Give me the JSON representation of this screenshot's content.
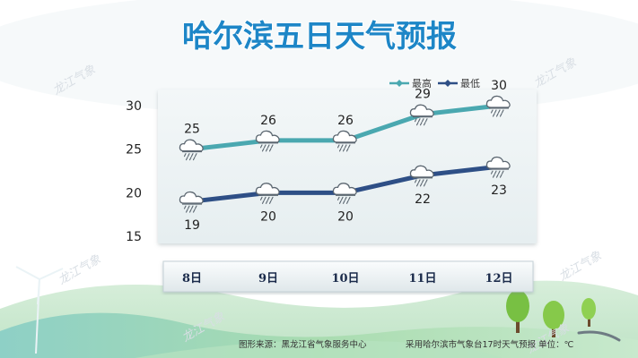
{
  "title": "哈尔滨五日天气预报",
  "watermark": "龙江气象",
  "footer": {
    "source": "图形来源：黑龙江省气象服务中心",
    "note": "采用哈尔滨市气象台17时天气预报 单位：℃"
  },
  "chart_data": {
    "type": "line",
    "categories": [
      "8日",
      "9日",
      "10日",
      "11日",
      "12日"
    ],
    "series": [
      {
        "name": "最高",
        "values": [
          25,
          26,
          26,
          29,
          30
        ],
        "color": "#4aa8b0"
      },
      {
        "name": "最低",
        "values": [
          19,
          20,
          20,
          22,
          23
        ],
        "color": "#2e4f86"
      }
    ],
    "yticks": [
      15,
      20,
      25,
      30
    ],
    "ylim": [
      15,
      30
    ],
    "grid": false,
    "legend": "top-right",
    "weather_icon": "cloud-rain-icon"
  }
}
